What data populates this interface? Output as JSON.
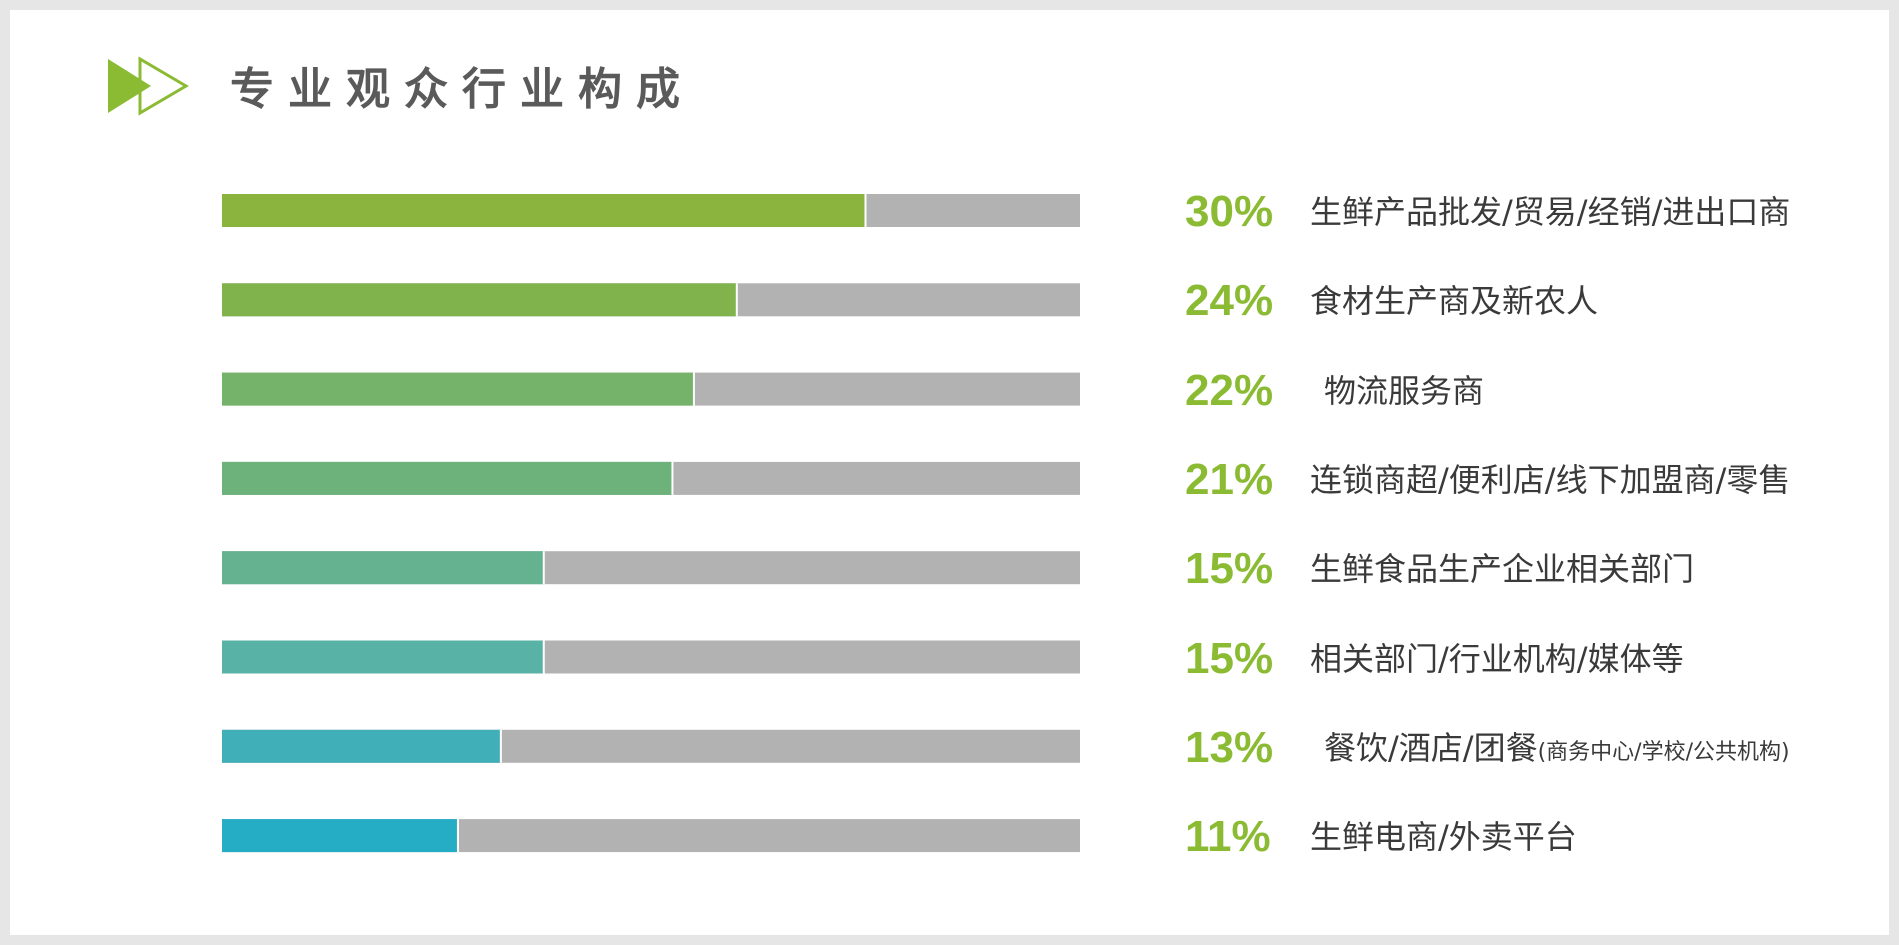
{
  "header": {
    "title": "专业观众行业构成",
    "icon": "double-play-arrow-icon",
    "icon_color": "#8bbb33"
  },
  "chart_data": {
    "type": "bar",
    "orientation": "horizontal",
    "title": "专业观众行业构成",
    "xlim": [
      0,
      40
    ],
    "grid": false,
    "track_color": "#b2b2b3",
    "bars": [
      {
        "pct_label": "30%",
        "value": 30,
        "category": "生鲜产品批发/贸易/经销/进出口商",
        "category_sub": "",
        "color": "#8ab43d"
      },
      {
        "pct_label": "24%",
        "value": 24,
        "category": "食材生产商及新农人",
        "category_sub": "",
        "color": "#80b34c"
      },
      {
        "pct_label": "22%",
        "value": 22,
        "category": "物流服务商",
        "category_sub": "",
        "color": "#76b36a"
      },
      {
        "pct_label": "21%",
        "value": 21,
        "category": "连锁商超/便利店/线下加盟商/零售",
        "category_sub": "",
        "color": "#6db27a"
      },
      {
        "pct_label": "15%",
        "value": 15,
        "category": "生鲜食品生产企业相关部门",
        "category_sub": "",
        "color": "#64b28f"
      },
      {
        "pct_label": "15%",
        "value": 15,
        "category": "相关部门/行业机构/媒体等",
        "category_sub": "",
        "color": "#58b2a6"
      },
      {
        "pct_label": "13%",
        "value": 13,
        "category": "餐饮/酒店/团餐",
        "category_sub": "(商务中心/学校/公共机构)",
        "color": "#40afb7"
      },
      {
        "pct_label": "11%",
        "value": 11,
        "category": "生鲜电商/外卖平台",
        "category_sub": "",
        "color": "#25adc6"
      }
    ]
  }
}
